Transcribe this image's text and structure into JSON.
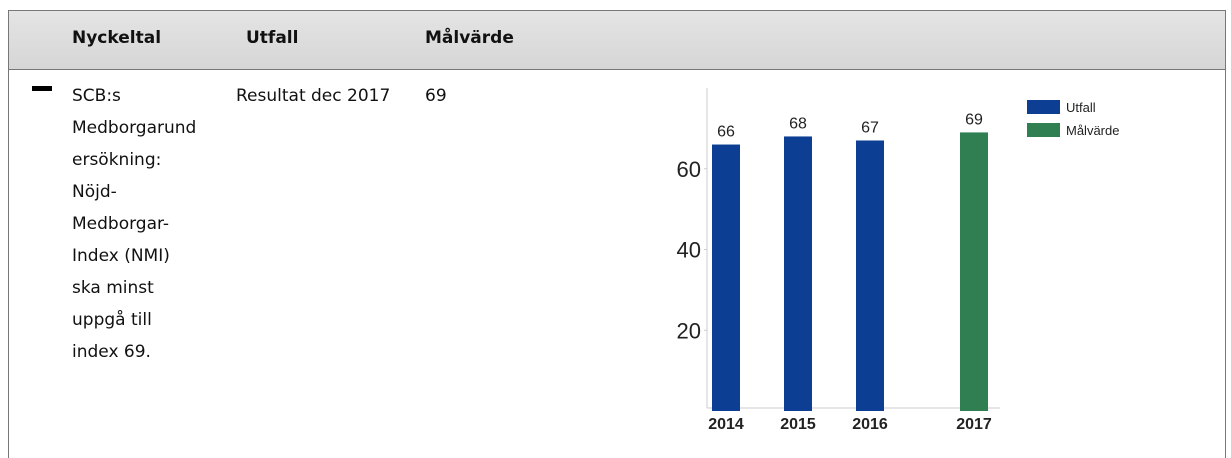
{
  "table": {
    "headers": [
      "Nyckeltal",
      "Utfall",
      "Målvärde"
    ],
    "rows": [
      {
        "nyckeltal_lines": [
          "SCB:s",
          "Medborgarund",
          "ersökning:",
          "Nöjd-",
          "Medborgar-",
          "Index (NMI)",
          "ska minst",
          "uppgå till",
          "index 69."
        ],
        "utfall": "Resultat dec 2017",
        "malvarde": "69"
      }
    ]
  },
  "chart_data": {
    "type": "bar",
    "categories": [
      "2014",
      "2015",
      "2016",
      "2017"
    ],
    "series": [
      {
        "name": "Utfall",
        "color": "#0c3f94",
        "values": [
          66,
          68,
          67,
          null
        ]
      },
      {
        "name": "Målvärde",
        "color": "#2f7f52",
        "values": [
          null,
          null,
          null,
          69
        ]
      }
    ],
    "ylim": [
      0,
      80
    ],
    "yticks": [
      20,
      40,
      60
    ]
  }
}
